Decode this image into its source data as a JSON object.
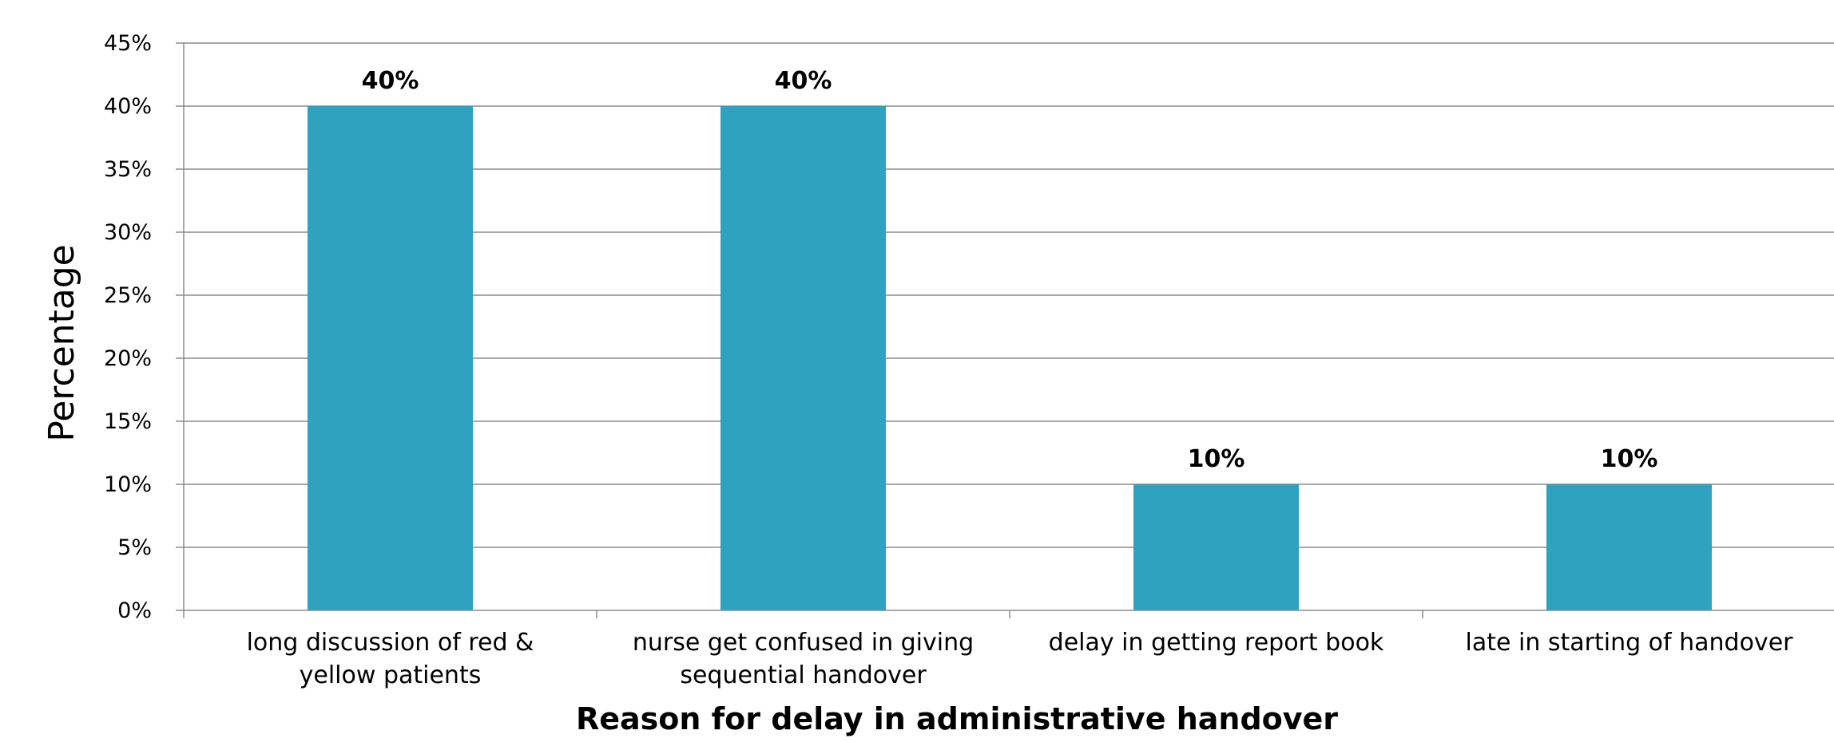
{
  "chart_data": {
    "type": "bar",
    "categories": [
      [
        "long discussion of red &",
        "yellow patients"
      ],
      [
        "nurse get confused in giving",
        "sequential handover"
      ],
      [
        "delay in getting report book"
      ],
      [
        "late in starting of handover"
      ]
    ],
    "values": [
      40,
      40,
      10,
      10
    ],
    "data_labels": [
      "40%",
      "40%",
      "10%",
      "10%"
    ],
    "xlabel": "Reason for delay in administrative handover",
    "ylabel": "Percentage",
    "ylim": [
      0,
      45
    ],
    "yticks": [
      0,
      5,
      10,
      15,
      20,
      25,
      30,
      35,
      40,
      45
    ],
    "ytick_labels": [
      "0%",
      "5%",
      "10%",
      "15%",
      "20%",
      "25%",
      "30%",
      "35%",
      "40%",
      "45%"
    ],
    "grid": true,
    "legend": "none",
    "bar_color": "#2EA2BF",
    "grid_color": "#8C8C8C"
  }
}
